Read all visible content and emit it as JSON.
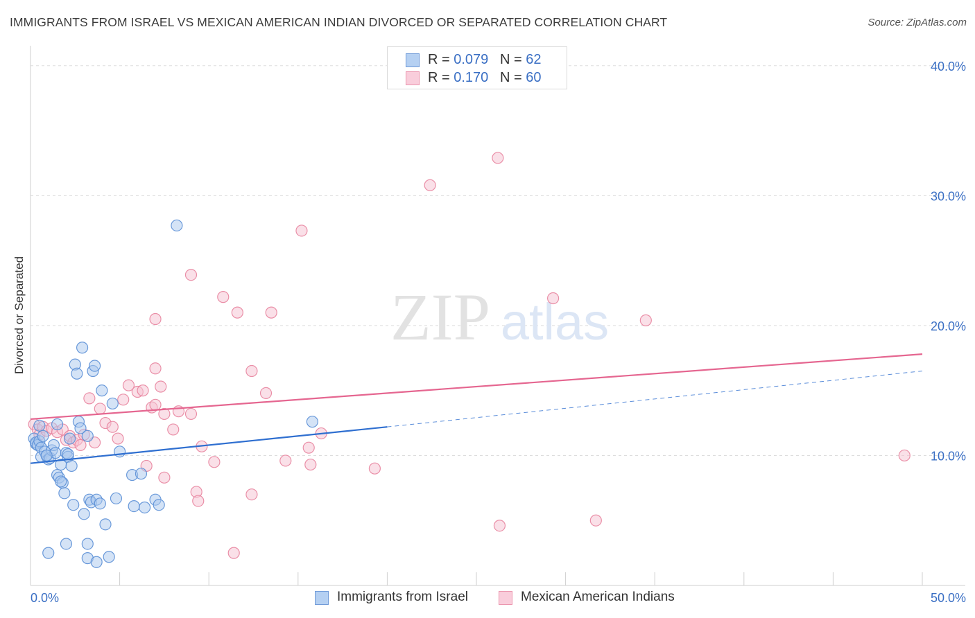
{
  "title": "IMMIGRANTS FROM ISRAEL VS MEXICAN AMERICAN INDIAN DIVORCED OR SEPARATED CORRELATION CHART",
  "source": "Source: ZipAtlas.com",
  "watermark": {
    "zip": "ZIP",
    "atlas": "atlas"
  },
  "legend_top": {
    "rows": [
      {
        "r_label": "R = ",
        "r_value": "0.079",
        "n_label": "N = ",
        "n_value": "62"
      },
      {
        "r_label": "R = ",
        "r_value": "0.170",
        "n_label": "N = ",
        "n_value": "60"
      }
    ]
  },
  "colors": {
    "blue_fill": "#a9c8ee",
    "blue_stroke": "#5b8fd6",
    "blue_line": "#2f6fd0",
    "pink_fill": "#f6c1d2",
    "pink_stroke": "#e8849f",
    "pink_line": "#e56690",
    "tick_text": "#3a6fc4"
  },
  "chart_data": {
    "type": "scatter",
    "title": "IMMIGRANTS FROM ISRAEL VS MEXICAN AMERICAN INDIAN DIVORCED OR SEPARATED CORRELATION CHART",
    "xlabel": "",
    "ylabel": "Divorced or Separated",
    "xlim": [
      0,
      50
    ],
    "ylim": [
      0,
      41
    ],
    "x_tick_labels": [
      {
        "value": 0,
        "label": "0.0%"
      },
      {
        "value": 50,
        "label": "50.0%"
      }
    ],
    "y_tick_labels": [
      {
        "value": 10,
        "label": "10.0%"
      },
      {
        "value": 20,
        "label": "20.0%"
      },
      {
        "value": 30,
        "label": "30.0%"
      },
      {
        "value": 40,
        "label": "40.0%"
      }
    ],
    "grid": true,
    "legend_position": "top-center",
    "series": [
      {
        "name": "Immigrants from Israel",
        "color": "#5b8fd6",
        "R": 0.079,
        "N": 62,
        "trend": {
          "x0": 0,
          "y0": 9.4,
          "x1": 20,
          "y1": 12.2,
          "dashed_to_x": 50,
          "dashed_to_y": 16.5
        },
        "points": [
          [
            0.2,
            11.3
          ],
          [
            0.3,
            10.9
          ],
          [
            0.3,
            11.0
          ],
          [
            0.4,
            10.8
          ],
          [
            0.5,
            11.1
          ],
          [
            0.5,
            12.3
          ],
          [
            0.6,
            10.6
          ],
          [
            0.6,
            9.9
          ],
          [
            0.7,
            11.5
          ],
          [
            0.8,
            10.3
          ],
          [
            0.9,
            10.0
          ],
          [
            1.0,
            9.7
          ],
          [
            1.1,
            9.8
          ],
          [
            1.2,
            10.4
          ],
          [
            1.3,
            10.8
          ],
          [
            1.4,
            10.2
          ],
          [
            1.5,
            12.4
          ],
          [
            1.5,
            8.5
          ],
          [
            1.6,
            8.3
          ],
          [
            1.7,
            9.3
          ],
          [
            1.8,
            7.9
          ],
          [
            1.9,
            7.1
          ],
          [
            2.0,
            10.2
          ],
          [
            2.1,
            9.9
          ],
          [
            2.2,
            11.3
          ],
          [
            2.3,
            9.2
          ],
          [
            2.4,
            6.2
          ],
          [
            2.5,
            17.0
          ],
          [
            2.6,
            16.3
          ],
          [
            2.7,
            12.6
          ],
          [
            2.8,
            12.1
          ],
          [
            2.9,
            18.3
          ],
          [
            3.0,
            5.5
          ],
          [
            3.2,
            11.5
          ],
          [
            3.3,
            6.6
          ],
          [
            3.4,
            6.4
          ],
          [
            3.5,
            16.5
          ],
          [
            3.6,
            16.9
          ],
          [
            3.7,
            6.6
          ],
          [
            3.9,
            6.3
          ],
          [
            4.0,
            15.0
          ],
          [
            4.2,
            4.7
          ],
          [
            4.4,
            2.2
          ],
          [
            4.6,
            14.0
          ],
          [
            4.8,
            6.7
          ],
          [
            5.0,
            10.3
          ],
          [
            5.7,
            8.5
          ],
          [
            5.8,
            6.1
          ],
          [
            6.2,
            8.6
          ],
          [
            6.4,
            6.0
          ],
          [
            7.0,
            6.6
          ],
          [
            7.2,
            6.2
          ],
          [
            8.2,
            27.7
          ],
          [
            15.8,
            12.6
          ],
          [
            1.0,
            2.5
          ],
          [
            2.0,
            3.2
          ],
          [
            3.2,
            3.2
          ],
          [
            3.2,
            2.1
          ],
          [
            3.7,
            1.8
          ],
          [
            0.9,
            10.0
          ],
          [
            1.7,
            8.0
          ],
          [
            2.1,
            10.1
          ]
        ]
      },
      {
        "name": "Mexican American Indians",
        "color": "#e8849f",
        "R": 0.17,
        "N": 60,
        "trend": {
          "x0": 0,
          "y0": 12.8,
          "x1": 50,
          "y1": 17.8
        },
        "points": [
          [
            0.2,
            12.4
          ],
          [
            0.4,
            12.0
          ],
          [
            0.5,
            11.6
          ],
          [
            0.7,
            12.2
          ],
          [
            0.9,
            11.9
          ],
          [
            1.2,
            12.1
          ],
          [
            1.5,
            11.8
          ],
          [
            1.8,
            12.0
          ],
          [
            2.0,
            11.2
          ],
          [
            2.2,
            11.5
          ],
          [
            2.4,
            11.0
          ],
          [
            2.6,
            11.2
          ],
          [
            2.8,
            10.8
          ],
          [
            3.0,
            11.6
          ],
          [
            3.3,
            14.4
          ],
          [
            3.6,
            11.0
          ],
          [
            3.9,
            13.6
          ],
          [
            4.2,
            12.5
          ],
          [
            4.6,
            12.2
          ],
          [
            4.9,
            11.3
          ],
          [
            5.2,
            14.3
          ],
          [
            5.5,
            15.4
          ],
          [
            6.0,
            14.9
          ],
          [
            6.3,
            15.0
          ],
          [
            6.8,
            13.7
          ],
          [
            7.0,
            13.9
          ],
          [
            7.5,
            13.2
          ],
          [
            8.0,
            12.0
          ],
          [
            8.3,
            13.4
          ],
          [
            9.0,
            13.2
          ],
          [
            9.6,
            10.7
          ],
          [
            10.3,
            9.5
          ],
          [
            11.6,
            21.0
          ],
          [
            12.4,
            16.5
          ],
          [
            13.2,
            14.8
          ],
          [
            13.5,
            21.0
          ],
          [
            14.3,
            9.6
          ],
          [
            15.2,
            27.3
          ],
          [
            15.6,
            10.6
          ],
          [
            16.3,
            11.7
          ],
          [
            7.0,
            16.7
          ],
          [
            7.3,
            15.3
          ],
          [
            9.0,
            23.9
          ],
          [
            10.8,
            22.2
          ],
          [
            7.0,
            20.5
          ],
          [
            6.5,
            9.2
          ],
          [
            7.5,
            8.3
          ],
          [
            9.3,
            7.2
          ],
          [
            9.4,
            6.5
          ],
          [
            12.4,
            7.0
          ],
          [
            11.4,
            2.5
          ],
          [
            15.7,
            9.3
          ],
          [
            19.3,
            9.0
          ],
          [
            22.4,
            30.8
          ],
          [
            26.2,
            32.9
          ],
          [
            26.3,
            4.6
          ],
          [
            29.3,
            22.1
          ],
          [
            31.7,
            5.0
          ],
          [
            34.5,
            20.4
          ],
          [
            49.0,
            10.0
          ]
        ]
      }
    ]
  },
  "legend_bottom": {
    "items": [
      {
        "label": "Immigrants from Israel"
      },
      {
        "label": "Mexican American Indians"
      }
    ]
  }
}
